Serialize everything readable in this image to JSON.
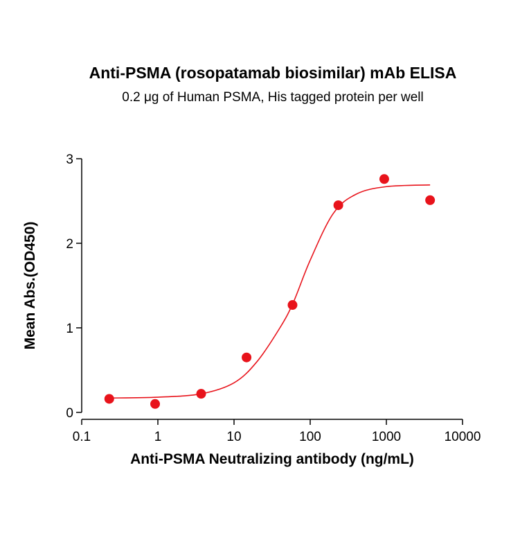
{
  "chart_data": {
    "type": "scatter",
    "title": "Anti-PSMA (rosopatamab biosimilar) mAb ELISA",
    "subtitle": "0.2 μg of Human PSMA, His tagged protein per well",
    "x_label": "Anti-PSMA Neutralizing antibody (ng/mL)",
    "y_label": "Mean Abs.(OD450)",
    "x_scale": "log",
    "x": [
      0.23,
      0.92,
      3.7,
      14.6,
      58.6,
      234,
      938,
      3750
    ],
    "values": [
      0.16,
      0.1,
      0.22,
      0.65,
      1.27,
      2.45,
      2.76,
      2.51
    ],
    "color": "#e8131b",
    "fit": {
      "x": [
        0.23,
        1,
        3.7,
        10,
        20,
        40,
        60,
        100,
        200,
        400,
        1000,
        3750
      ],
      "values": [
        0.17,
        0.18,
        0.22,
        0.35,
        0.6,
        1.0,
        1.3,
        1.8,
        2.35,
        2.58,
        2.67,
        2.69
      ],
      "color": "#e8131b"
    },
    "xlim": [
      0.1,
      10000
    ],
    "xticks": [
      0.1,
      1,
      10,
      100,
      1000,
      10000
    ],
    "ylim": [
      0,
      3
    ],
    "yticks": [
      0,
      1,
      2,
      3
    ]
  }
}
